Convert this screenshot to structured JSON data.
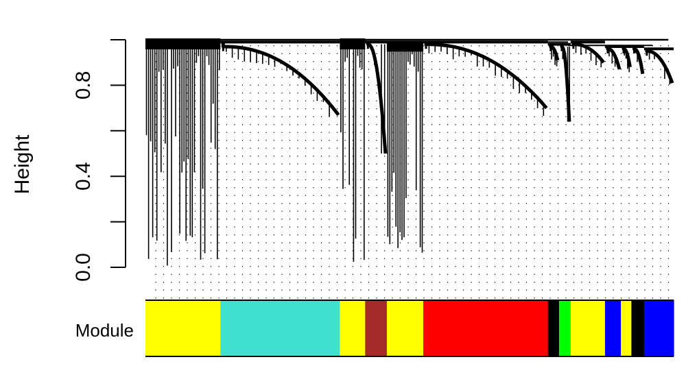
{
  "chart_data": {
    "type": "dendrogram",
    "ylabel": "Height",
    "ylim": [
      0,
      1
    ],
    "yticks": [
      {
        "value": 0.0,
        "label": "0.0"
      },
      {
        "value": 0.2,
        "label": ""
      },
      {
        "value": 0.4,
        "label": "0.4"
      },
      {
        "value": 0.6,
        "label": ""
      },
      {
        "value": 0.8,
        "label": "0.8"
      },
      {
        "value": 1.0,
        "label": ""
      }
    ],
    "color_bar_label": "Module",
    "modules": [
      {
        "color": "#FFFF00",
        "fraction": 0.142
      },
      {
        "color": "#40E0D0",
        "fraction": 0.226
      },
      {
        "color": "#FFFF00",
        "fraction": 0.048
      },
      {
        "color": "#A52A2A",
        "fraction": 0.041
      },
      {
        "color": "#FFFF00",
        "fraction": 0.069
      },
      {
        "color": "#FF0000",
        "fraction": 0.236
      },
      {
        "color": "#000000",
        "fraction": 0.021
      },
      {
        "color": "#00FF00",
        "fraction": 0.022
      },
      {
        "color": "#FFFF00",
        "fraction": 0.065
      },
      {
        "color": "#0000FF",
        "fraction": 0.03
      },
      {
        "color": "#FFFF00",
        "fraction": 0.02
      },
      {
        "color": "#000000",
        "fraction": 0.024
      },
      {
        "color": "#0000FF",
        "fraction": 0.056
      }
    ],
    "clusters": [
      {
        "start": 0.0,
        "end": 0.142,
        "merge": 1.0,
        "kind": "deep",
        "min": 0.0
      },
      {
        "start": 0.142,
        "end": 0.368,
        "merge": 0.99,
        "kind": "curve",
        "from": 0.97,
        "to": 0.67
      },
      {
        "start": 0.368,
        "end": 0.416,
        "merge": 1.0,
        "kind": "deep",
        "min": 0.02
      },
      {
        "start": 0.416,
        "end": 0.457,
        "merge": 0.99,
        "kind": "drop",
        "from": 0.98,
        "to": 0.5
      },
      {
        "start": 0.457,
        "end": 0.526,
        "merge": 0.99,
        "kind": "deep",
        "min": 0.06
      },
      {
        "start": 0.526,
        "end": 0.762,
        "merge": 0.99,
        "kind": "curve",
        "from": 0.98,
        "to": 0.7
      },
      {
        "start": 0.762,
        "end": 0.783,
        "merge": 0.98,
        "kind": "curve",
        "from": 0.97,
        "to": 0.91
      },
      {
        "start": 0.783,
        "end": 0.805,
        "merge": 0.98,
        "kind": "drop",
        "from": 0.97,
        "to": 0.64
      },
      {
        "start": 0.805,
        "end": 0.87,
        "merge": 0.99,
        "kind": "curve",
        "from": 0.98,
        "to": 0.9
      },
      {
        "start": 0.87,
        "end": 0.9,
        "merge": 0.97,
        "kind": "curve",
        "from": 0.96,
        "to": 0.87
      },
      {
        "start": 0.9,
        "end": 0.92,
        "merge": 0.97,
        "kind": "curve",
        "from": 0.96,
        "to": 0.88
      },
      {
        "start": 0.92,
        "end": 0.944,
        "merge": 0.97,
        "kind": "curve",
        "from": 0.96,
        "to": 0.85
      },
      {
        "start": 0.944,
        "end": 1.0,
        "merge": 0.96,
        "kind": "curve",
        "from": 0.95,
        "to": 0.81
      }
    ]
  }
}
